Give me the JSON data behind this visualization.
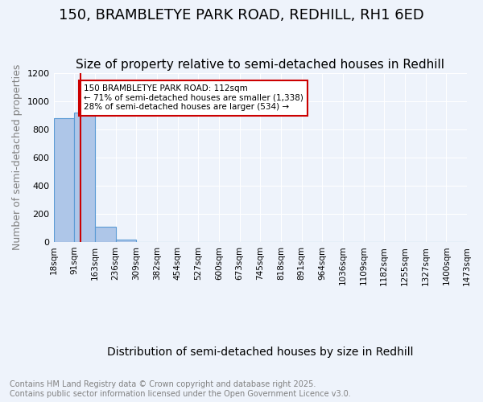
{
  "title": "150, BRAMBLETYE PARK ROAD, REDHILL, RH1 6ED",
  "subtitle": "Size of property relative to semi-detached houses in Redhill",
  "xlabel": "Distribution of semi-detached houses by size in Redhill",
  "ylabel": "Number of semi-detached properties",
  "bin_labels": [
    "18sqm",
    "91sqm",
    "163sqm",
    "236sqm",
    "309sqm",
    "382sqm",
    "454sqm",
    "527sqm",
    "600sqm",
    "673sqm",
    "745sqm",
    "818sqm",
    "891sqm",
    "964sqm",
    "1036sqm",
    "1109sqm",
    "1182sqm",
    "1255sqm",
    "1327sqm",
    "1400sqm",
    "1473sqm"
  ],
  "bin_values": [
    880,
    920,
    110,
    15,
    0,
    0,
    0,
    0,
    0,
    0,
    0,
    0,
    0,
    0,
    0,
    0,
    0,
    0,
    0,
    0
  ],
  "bar_color": "#aec6e8",
  "bar_edge_color": "#5b9bd5",
  "red_line_color": "#cc0000",
  "annotation_text": "150 BRAMBLETYE PARK ROAD: 112sqm\n← 71% of semi-detached houses are smaller (1,338)\n28% of semi-detached houses are larger (534) →",
  "annotation_box_color": "#ffffff",
  "annotation_box_edge": "#cc0000",
  "ylim": [
    0,
    1200
  ],
  "yticks": [
    0,
    200,
    400,
    600,
    800,
    1000,
    1200
  ],
  "footnote": "Contains HM Land Registry data © Crown copyright and database right 2025.\nContains public sector information licensed under the Open Government Licence v3.0.",
  "bg_color": "#eef3fb",
  "plot_bg_color": "#eef3fb",
  "title_fontsize": 13,
  "subtitle_fontsize": 11,
  "tick_fontsize": 7.5,
  "ylabel_fontsize": 9,
  "xlabel_fontsize": 10,
  "footnote_fontsize": 7
}
